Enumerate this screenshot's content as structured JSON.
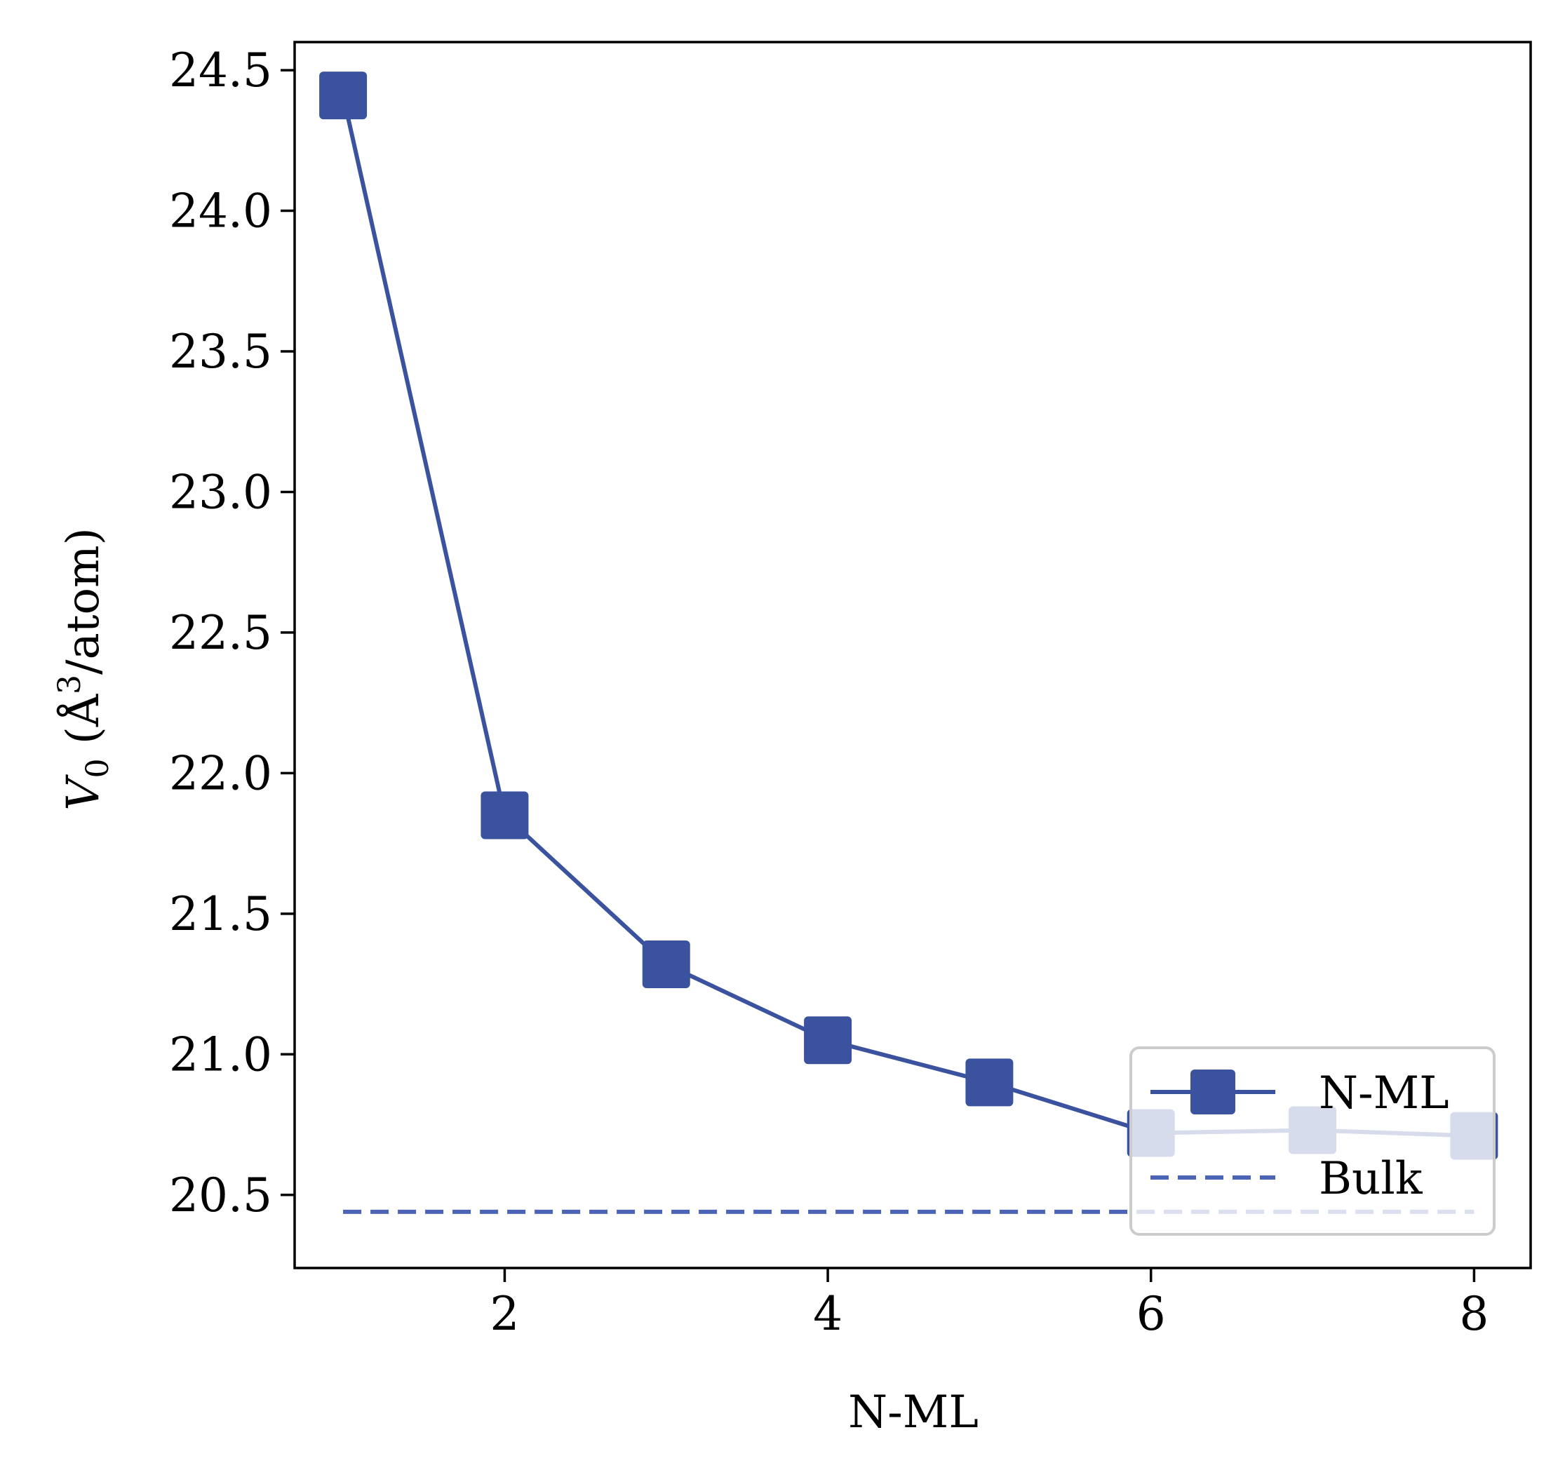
{
  "chart_data": {
    "type": "line",
    "title": "",
    "xlabel": "N-ML",
    "ylabel": {
      "main": "V",
      "sub": "0",
      "unit_pre": " (Å",
      "unit_sup": "3",
      "unit_post": "/atom)"
    },
    "xlim": [
      0.7,
      8.35
    ],
    "ylim": [
      20.24,
      24.6
    ],
    "xticks": [
      2,
      4,
      6,
      8
    ],
    "xtick_labels": [
      "2",
      "4",
      "6",
      "8"
    ],
    "yticks": [
      20.5,
      21.0,
      21.5,
      22.0,
      22.5,
      23.0,
      23.5,
      24.0,
      24.5
    ],
    "ytick_labels": [
      "20.5",
      "21.0",
      "21.5",
      "22.0",
      "22.5",
      "23.0",
      "23.5",
      "24.0",
      "24.5"
    ],
    "grid": false,
    "legend_position": "lower-right",
    "series": [
      {
        "name": "N-ML",
        "style": "solid-square-markers",
        "color": "#3b539e",
        "x": [
          1,
          2,
          3,
          4,
          5,
          6,
          7,
          8
        ],
        "y": [
          24.41,
          21.85,
          21.32,
          21.05,
          20.9,
          20.72,
          20.73,
          20.71
        ]
      },
      {
        "name": "Bulk",
        "style": "dashed",
        "color": "#4b64b6",
        "x": [
          1,
          8
        ],
        "y": [
          20.44,
          20.44
        ]
      }
    ]
  }
}
